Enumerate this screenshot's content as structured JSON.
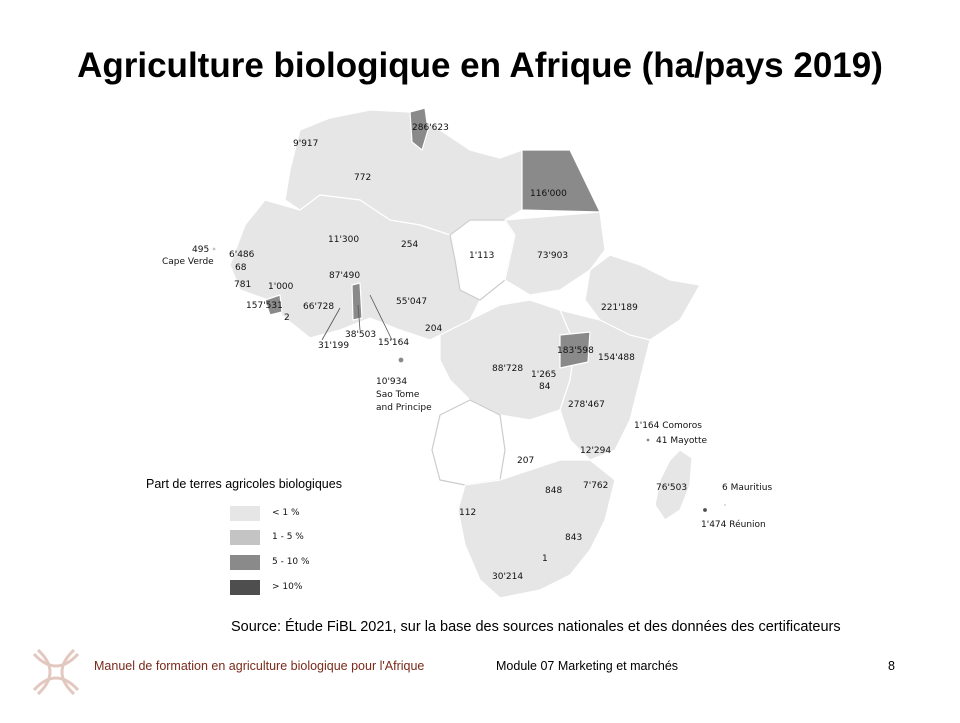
{
  "title": "Agriculture biologique en Afrique (ha/pays 2019)",
  "legend": {
    "title": "Part de terres agricoles biologiques",
    "items": [
      {
        "label": "< 1 %",
        "color": "#e6e6e6"
      },
      {
        "label": "1 - 5 %",
        "color": "#c4c4c4"
      },
      {
        "label": "5 - 10 %",
        "color": "#8a8a8a"
      },
      {
        "label": "> 10%",
        "color": "#4e4e4e"
      }
    ]
  },
  "map_labels": {
    "tunisia": "286'623",
    "morocco": "9'917",
    "algeria": "772",
    "egypt": "116'000",
    "mali": "11'300",
    "niger": "254",
    "chad": "1'113",
    "sudan": "73'903",
    "cape_verde_value": "495",
    "cape_verde_name": "Cape Verde",
    "senegal": "6'486",
    "gambia": "68",
    "guinea_bissau": "781",
    "guinea": "1'000",
    "sierra_leone": "157'531",
    "liberia": "2",
    "cote_divoire": "66'728",
    "burkina_faso": "87'490",
    "nigeria": "55'047",
    "ethiopia": "221'189",
    "ghana": "38'503",
    "togo_benin_left": "31'199",
    "cameroon_west": "15'164",
    "cameroon": "204",
    "uganda": "183'598",
    "kenya": "154'488",
    "drc": "88'728",
    "rwanda": "1'265",
    "burundi": "84",
    "tanzania": "278'467",
    "sao_tome_value": "10'934",
    "sao_tome_name_1": "Sao Tome",
    "sao_tome_name_2": "and Principe",
    "comoros": "1'164 Comoros",
    "mayotte": "41 Mayotte",
    "malawi": "12'294",
    "zambia": "207",
    "zimbabwe": "848",
    "mozambique": "7'762",
    "madagascar": "76'503",
    "mauritius": "6  Mauritius",
    "reunion": "1'474 Réunion",
    "namibia": "112",
    "eswatini": "843",
    "lesotho": "1",
    "south_africa": "30'214"
  },
  "source": "Source: Étude FiBL 2021, sur la base des sources nationales et des données des certificateurs",
  "footer": {
    "left": "Manuel de formation en agriculture biologique pour l'Afrique",
    "middle": "Module 07 Marketing et marchés",
    "page": "8"
  }
}
